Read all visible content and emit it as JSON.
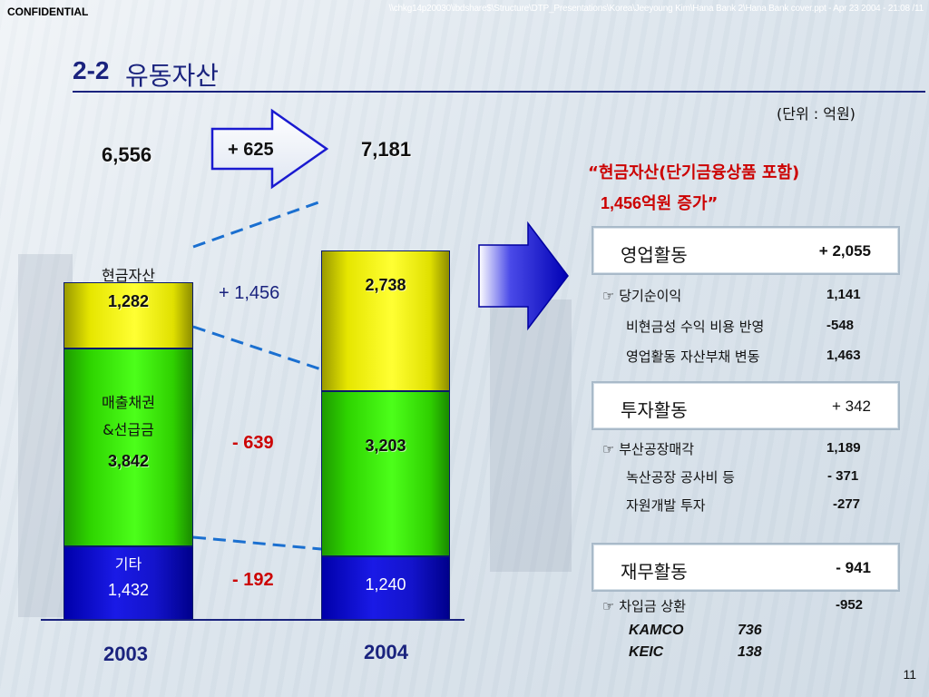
{
  "header": {
    "confidential": "CONFIDENTIAL",
    "file_path": "\\\\chkg14p20030\\ibdshare$\\Structure\\DTP_Presentations\\Korea\\Jeeyoung Kim\\Hana Bank 2\\Hana Bank cover.ppt - Apr 23 2004 - 21:08 /11",
    "title_number": "2-2",
    "title_text": "유동자산",
    "unit": "(단위 : 억원)"
  },
  "chart_data": {
    "type": "bar",
    "categories": [
      "2003",
      "2004"
    ],
    "totals": [
      "6,556",
      "7,181"
    ],
    "total_change": "+ 625",
    "series": [
      {
        "name": "기타",
        "values": [
          1432,
          1240
        ],
        "labels": [
          "1,432",
          "1,240"
        ],
        "color": "#1414cc"
      },
      {
        "name": "매출채권&선급금",
        "name_line1": "매출채권",
        "name_line2": "&선급금",
        "values": [
          3842,
          3203
        ],
        "labels": [
          "3,842",
          "3,203"
        ],
        "color": "#33e600"
      },
      {
        "name": "현금자산",
        "values": [
          1282,
          2738
        ],
        "labels": [
          "1,282",
          "2,738"
        ],
        "color": "#ffff33"
      }
    ],
    "changes": {
      "cash": "+ 1,456",
      "receivables": "- 639",
      "other": "- 192"
    }
  },
  "right_panel": {
    "quote_line1": "“현금자산(단기금융상품 포함)",
    "quote_num": "1,456",
    "quote_rest": "억원 증가”",
    "sections": [
      {
        "title": "영업활동",
        "value": "+ 2,055",
        "items": [
          {
            "bullet": "☞",
            "label": "당기순이익",
            "value": "1,141"
          },
          {
            "bullet": "",
            "label": "비현금성 수익 비용 반영",
            "value": "-548"
          },
          {
            "bullet": "",
            "label": "영업활동 자산부채 변동",
            "value": "1,463"
          }
        ]
      },
      {
        "title": "투자활동",
        "value": "+ 342",
        "items": [
          {
            "bullet": "☞",
            "label": "부산공장매각",
            "value": "1,189"
          },
          {
            "bullet": "",
            "label": "녹산공장 공사비 등",
            "value": "- 371"
          },
          {
            "bullet": "",
            "label": "자원개발 투자",
            "value": "-277"
          }
        ]
      },
      {
        "title": "재무활동",
        "value": "- 941",
        "items": [
          {
            "bullet": "☞",
            "label": "차입금 상환",
            "value": "-952"
          }
        ],
        "sub_items": [
          {
            "label": "KAMCO",
            "value": "736"
          },
          {
            "label": "KEIC",
            "value": "138"
          }
        ]
      }
    ]
  },
  "footer": {
    "page": "11"
  },
  "colors": {
    "navy": "#1a237e",
    "red": "#cc0000",
    "arrow_blue": "#0000cc"
  }
}
